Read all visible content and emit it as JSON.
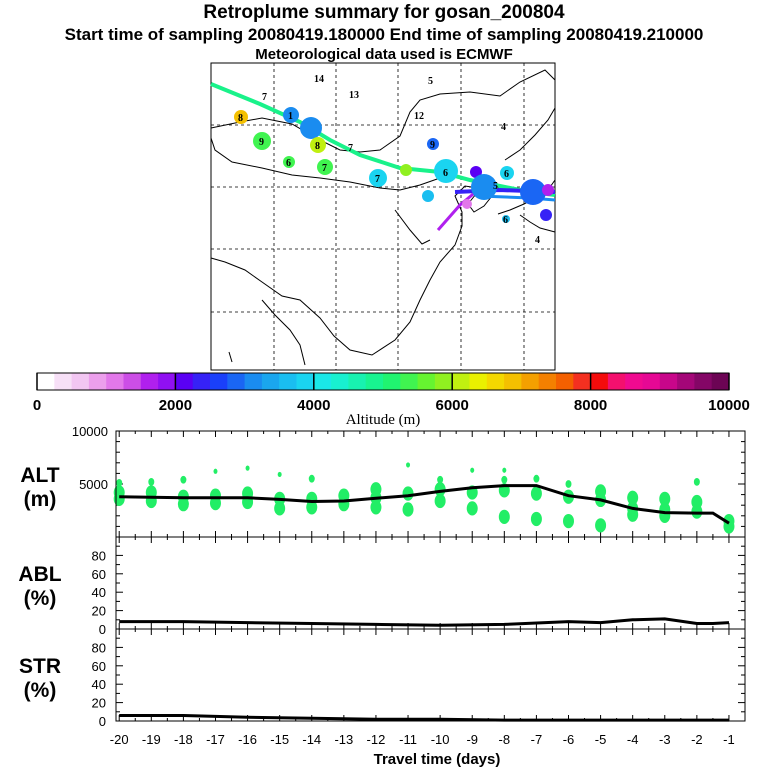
{
  "header": {
    "title": "Retroplume summary for gosan_200804",
    "times": "Start time of sampling 20080419.180000     End time of sampling 20080419.210000",
    "met": "Meteorological data used is ECMWF"
  },
  "colors": {
    "dots": "#22ee66",
    "line": "#000000",
    "trajectory": "#19f28a"
  },
  "map": {
    "labels": [
      "14",
      "13",
      "7",
      "5",
      "8",
      "1",
      "12",
      "9",
      "8",
      "4",
      "7",
      "7",
      "9",
      "6",
      "7",
      "6",
      "5",
      "6",
      "6",
      "4"
    ]
  },
  "chart_data": [
    {
      "type": "colorbar",
      "title": "Altitude (m)",
      "tick_labels": [
        "0",
        "2000",
        "4000",
        "6000",
        "8000",
        "10000"
      ],
      "range": [
        0,
        10000
      ],
      "colors": [
        "#ffffff",
        "#f7e0f7",
        "#f2c6f2",
        "#ec9fec",
        "#e278ea",
        "#cc4ee6",
        "#b020ee",
        "#9010f2",
        "#5a00f4",
        "#3622f6",
        "#1a40fa",
        "#1a66f4",
        "#1a8cf0",
        "#1aa6ee",
        "#1abef0",
        "#1ad4f0",
        "#1ae8e8",
        "#18f0d0",
        "#18f2b0",
        "#18f490",
        "#20f470",
        "#40f450",
        "#66f430",
        "#90f020",
        "#c0f010",
        "#eaf000",
        "#f4d800",
        "#f4c000",
        "#f4a000",
        "#f48000",
        "#f46000",
        "#f43020",
        "#f40c0c",
        "#f4106e",
        "#f00a90",
        "#e60894",
        "#c8068a",
        "#a40678",
        "#840666",
        "#6c0454"
      ]
    },
    {
      "type": "scatter+line",
      "panel": "ALT",
      "ylabel": [
        "ALT",
        "(m)"
      ],
      "ylim": [
        0,
        10000
      ],
      "yticks": [
        0,
        5000,
        10000
      ],
      "ytick_labels": [
        "5000",
        "10000"
      ],
      "x": [
        -20,
        -19,
        -18,
        -17,
        -16,
        -15,
        -14,
        -13,
        -12,
        -11,
        -10,
        -9,
        -8,
        -7,
        -6,
        -5,
        -4,
        -3,
        -2,
        -1
      ],
      "line_x": [
        -20,
        -19,
        -18,
        -17,
        -16,
        -15,
        -14,
        -13,
        -12,
        -11,
        -10,
        -9,
        -8,
        -7,
        -6,
        -5,
        -4,
        -3,
        -2,
        -1.5,
        -1
      ],
      "line_y": [
        3800,
        3750,
        3700,
        3700,
        3700,
        3550,
        3350,
        3400,
        3650,
        3900,
        4300,
        4650,
        4850,
        4850,
        3900,
        3500,
        2700,
        2300,
        2250,
        2250,
        1300
      ],
      "points": [
        [
          -20,
          3600
        ],
        [
          -20,
          4200
        ],
        [
          -20,
          5100
        ],
        [
          -19,
          3400
        ],
        [
          -19,
          4200
        ],
        [
          -19,
          5200
        ],
        [
          -18,
          3100
        ],
        [
          -18,
          3800
        ],
        [
          -18,
          5400
        ],
        [
          -17,
          3200
        ],
        [
          -17,
          3900
        ],
        [
          -17,
          6200
        ],
        [
          -16,
          3300
        ],
        [
          -16,
          4100
        ],
        [
          -16,
          6500
        ],
        [
          -15,
          2700
        ],
        [
          -15,
          3600
        ],
        [
          -15,
          5900
        ],
        [
          -14,
          2800
        ],
        [
          -14,
          3600
        ],
        [
          -14,
          5500
        ],
        [
          -13,
          3100
        ],
        [
          -13,
          3900
        ],
        [
          -12,
          2800
        ],
        [
          -12,
          3700
        ],
        [
          -12,
          4500
        ],
        [
          -11,
          2600
        ],
        [
          -11,
          4100
        ],
        [
          -11,
          6800
        ],
        [
          -10,
          3400
        ],
        [
          -10,
          4500
        ],
        [
          -10,
          5400
        ],
        [
          -9,
          2700
        ],
        [
          -9,
          4200
        ],
        [
          -9,
          6300
        ],
        [
          -8,
          1900
        ],
        [
          -8,
          4400
        ],
        [
          -8,
          5400
        ],
        [
          -8,
          6300
        ],
        [
          -7,
          1700
        ],
        [
          -7,
          4100
        ],
        [
          -7,
          5500
        ],
        [
          -6,
          1500
        ],
        [
          -6,
          3800
        ],
        [
          -6,
          5000
        ],
        [
          -5,
          1100
        ],
        [
          -5,
          3500
        ],
        [
          -5,
          4300
        ],
        [
          -4,
          2100
        ],
        [
          -4,
          2700
        ],
        [
          -4,
          3700
        ],
        [
          -3,
          2000
        ],
        [
          -3,
          2600
        ],
        [
          -3,
          3600
        ],
        [
          -2,
          2400
        ],
        [
          -2,
          3300
        ],
        [
          -2,
          5200
        ],
        [
          -1,
          1500
        ],
        [
          -1,
          1000
        ]
      ]
    },
    {
      "type": "line",
      "panel": "ABL",
      "ylabel": [
        "ABL",
        "(%)"
      ],
      "ylim": [
        0,
        100
      ],
      "ytick_labels": [
        "0",
        "20",
        "40",
        "60",
        "80"
      ],
      "x": [
        -20,
        -18,
        -16,
        -14,
        -12,
        -10,
        -8,
        -6,
        -5,
        -4,
        -3,
        -2,
        -1.5,
        -1
      ],
      "y": [
        8,
        8,
        7,
        6,
        5,
        4,
        5,
        8,
        7,
        10,
        11,
        6,
        6,
        7
      ]
    },
    {
      "type": "line",
      "panel": "STR",
      "ylabel": [
        "STR",
        "(%)"
      ],
      "ylim": [
        0,
        100
      ],
      "ytick_labels": [
        "0",
        "20",
        "40",
        "60",
        "80"
      ],
      "x": [
        -20,
        -18,
        -17,
        -16,
        -14,
        -12,
        -10,
        -8,
        -6,
        -4,
        -2,
        -1
      ],
      "y": [
        6,
        6,
        5,
        4,
        3,
        2,
        2,
        1,
        1,
        1,
        1,
        1
      ],
      "xlabel": "Travel time (days)",
      "xtick_labels": [
        "-20",
        "-19",
        "-18",
        "-17",
        "-16",
        "-15",
        "-14",
        "-13",
        "-12",
        "-11",
        "-10",
        "-9",
        "-8",
        "-7",
        "-6",
        "-5",
        "-4",
        "-3",
        "-2",
        "-1"
      ]
    }
  ]
}
